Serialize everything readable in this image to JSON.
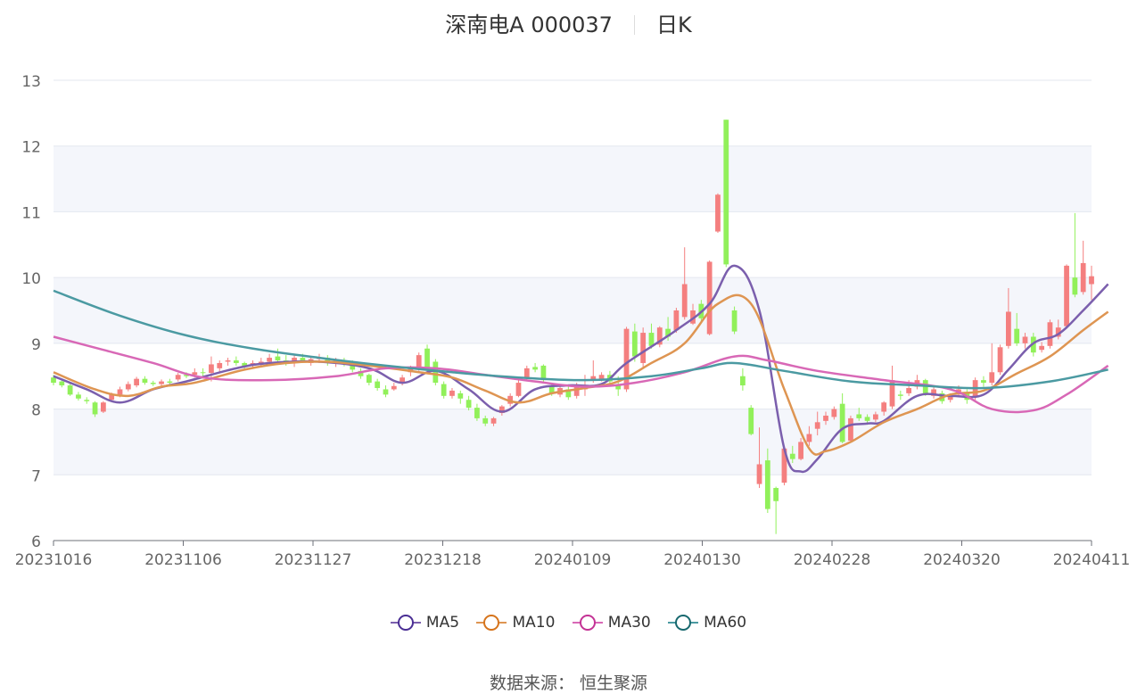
{
  "header": {
    "stock": "深南电A 000037",
    "period": "日K"
  },
  "source": {
    "label": "数据来源：",
    "name": "恒生聚源"
  },
  "colors": {
    "up": "#f47f7f",
    "down": "#91f05a",
    "MA5": "#7b5fad",
    "MA10": "#de9552",
    "MA30": "#d868b6",
    "MA60": "#4b9aa2",
    "MA5_ring": "#4a2e94",
    "MA10_ring": "#d6741c",
    "MA30_ring": "#c43395",
    "MA60_ring": "#17686e"
  },
  "chart_data": {
    "type": "candlestick",
    "x_ticks": [
      "20231016",
      "20231106",
      "20231127",
      "20231218",
      "20240109",
      "20240130",
      "20240228",
      "20240320",
      "20240411"
    ],
    "ylim": [
      6,
      13
    ],
    "yticks": [
      6,
      7,
      8,
      9,
      10,
      11,
      12,
      13
    ],
    "grid": "horizontal, alternating bands",
    "legend": [
      "MA5",
      "MA10",
      "MA30",
      "MA60"
    ],
    "legend_position": "bottom",
    "candles": [
      [
        8.48,
        8.4,
        8.52,
        8.36
      ],
      [
        8.42,
        8.36,
        8.46,
        8.33
      ],
      [
        8.36,
        8.22,
        8.39,
        8.2
      ],
      [
        8.22,
        8.16,
        8.26,
        8.13
      ],
      [
        8.14,
        8.12,
        8.18,
        8.08
      ],
      [
        8.1,
        7.92,
        8.12,
        7.88
      ],
      [
        7.96,
        8.1,
        8.12,
        7.94
      ],
      [
        8.14,
        8.22,
        8.25,
        8.12
      ],
      [
        8.22,
        8.3,
        8.34,
        8.18
      ],
      [
        8.3,
        8.38,
        8.42,
        8.27
      ],
      [
        8.36,
        8.46,
        8.49,
        8.33
      ],
      [
        8.46,
        8.4,
        8.5,
        8.37
      ],
      [
        8.4,
        8.38,
        8.43,
        8.35
      ],
      [
        8.38,
        8.42,
        8.45,
        8.35
      ],
      [
        8.42,
        8.4,
        8.46,
        8.37
      ],
      [
        8.45,
        8.52,
        8.55,
        8.42
      ],
      [
        8.52,
        8.5,
        8.56,
        8.47
      ],
      [
        8.52,
        8.56,
        8.62,
        8.48
      ],
      [
        8.56,
        8.55,
        8.62,
        8.5
      ],
      [
        8.55,
        8.68,
        8.8,
        8.42
      ],
      [
        8.62,
        8.7,
        8.74,
        8.56
      ],
      [
        8.72,
        8.74,
        8.78,
        8.66
      ],
      [
        8.74,
        8.7,
        8.8,
        8.66
      ],
      [
        8.7,
        8.66,
        8.72,
        8.6
      ],
      [
        8.66,
        8.7,
        8.74,
        8.62
      ],
      [
        8.68,
        8.72,
        8.78,
        8.64
      ],
      [
        8.72,
        8.78,
        8.84,
        8.7
      ],
      [
        8.8,
        8.74,
        8.92,
        8.7
      ],
      [
        8.74,
        8.72,
        8.82,
        8.66
      ],
      [
        8.7,
        8.78,
        8.82,
        8.64
      ],
      [
        8.78,
        8.74,
        8.84,
        8.7
      ],
      [
        8.7,
        8.76,
        8.8,
        8.66
      ],
      [
        8.76,
        8.78,
        8.84,
        8.7
      ],
      [
        8.78,
        8.7,
        8.82,
        8.66
      ],
      [
        8.7,
        8.74,
        8.78,
        8.64
      ],
      [
        8.74,
        8.7,
        8.78,
        8.65
      ],
      [
        8.7,
        8.6,
        8.74,
        8.56
      ],
      [
        8.58,
        8.5,
        8.62,
        8.46
      ],
      [
        8.52,
        8.4,
        8.54,
        8.36
      ],
      [
        8.42,
        8.32,
        8.46,
        8.28
      ],
      [
        8.3,
        8.22,
        8.36,
        8.18
      ],
      [
        8.3,
        8.35,
        8.4,
        8.28
      ],
      [
        8.4,
        8.48,
        8.52,
        8.36
      ],
      [
        8.56,
        8.64,
        8.66,
        8.5
      ],
      [
        8.62,
        8.82,
        8.86,
        8.58
      ],
      [
        8.92,
        8.62,
        8.98,
        8.58
      ],
      [
        8.72,
        8.4,
        8.76,
        8.36
      ],
      [
        8.38,
        8.2,
        8.42,
        8.16
      ],
      [
        8.2,
        8.28,
        8.32,
        8.16
      ],
      [
        8.24,
        8.16,
        8.28,
        8.08
      ],
      [
        8.14,
        8.02,
        8.2,
        7.98
      ],
      [
        8.02,
        7.86,
        8.08,
        7.82
      ],
      [
        7.86,
        7.78,
        7.9,
        7.74
      ],
      [
        7.78,
        7.86,
        7.88,
        7.74
      ],
      [
        7.94,
        8.04,
        8.06,
        7.9
      ],
      [
        8.08,
        8.2,
        8.24,
        8.04
      ],
      [
        8.2,
        8.4,
        8.44,
        8.18
      ],
      [
        8.46,
        8.62,
        8.66,
        8.44
      ],
      [
        8.64,
        8.6,
        8.7,
        8.56
      ],
      [
        8.66,
        8.44,
        8.68,
        8.4
      ],
      [
        8.36,
        8.24,
        8.4,
        8.2
      ],
      [
        8.22,
        8.32,
        8.36,
        8.18
      ],
      [
        8.3,
        8.18,
        8.34,
        8.14
      ],
      [
        8.2,
        8.36,
        8.4,
        8.16
      ],
      [
        8.3,
        8.34,
        8.52,
        8.2
      ],
      [
        8.44,
        8.5,
        8.74,
        8.4
      ],
      [
        8.46,
        8.52,
        8.56,
        8.42
      ],
      [
        8.52,
        8.42,
        8.58,
        8.38
      ],
      [
        8.36,
        8.3,
        8.5,
        8.2
      ],
      [
        8.3,
        9.22,
        9.25,
        8.26
      ],
      [
        9.18,
        8.8,
        9.3,
        8.72
      ],
      [
        8.7,
        9.16,
        9.24,
        8.62
      ],
      [
        9.16,
        8.96,
        9.3,
        8.92
      ],
      [
        8.98,
        9.24,
        9.26,
        8.94
      ],
      [
        9.22,
        9.1,
        9.4,
        9.04
      ],
      [
        9.2,
        9.5,
        9.54,
        9.16
      ],
      [
        9.4,
        9.9,
        10.46,
        9.36
      ],
      [
        9.3,
        9.5,
        9.6,
        9.28
      ],
      [
        9.6,
        9.38,
        9.66,
        9.34
      ],
      [
        9.14,
        10.24,
        10.26,
        9.12
      ],
      [
        10.7,
        11.26,
        11.28,
        10.68
      ],
      [
        12.4,
        10.2,
        12.4,
        10.16
      ],
      [
        9.5,
        9.18,
        9.56,
        9.14
      ],
      [
        8.5,
        8.36,
        8.62,
        8.28
      ],
      [
        8.02,
        7.62,
        8.06,
        7.6
      ],
      [
        6.86,
        7.16,
        7.72,
        6.8
      ],
      [
        7.22,
        6.48,
        7.4,
        6.42
      ],
      [
        6.8,
        6.6,
        6.82,
        6.1
      ],
      [
        6.88,
        7.4,
        7.44,
        6.84
      ],
      [
        7.32,
        7.24,
        7.44,
        7.18
      ],
      [
        7.24,
        7.5,
        7.56,
        7.22
      ],
      [
        7.5,
        7.62,
        7.74,
        7.44
      ],
      [
        7.7,
        7.8,
        7.96,
        7.6
      ],
      [
        7.82,
        7.9,
        7.96,
        7.76
      ],
      [
        7.88,
        8.0,
        8.04,
        7.84
      ],
      [
        8.08,
        7.5,
        8.24,
        7.48
      ],
      [
        7.52,
        7.86,
        7.9,
        7.5
      ],
      [
        7.92,
        7.86,
        8.02,
        7.82
      ],
      [
        7.88,
        7.82,
        7.92,
        7.76
      ],
      [
        7.84,
        7.92,
        7.96,
        7.8
      ],
      [
        7.96,
        8.1,
        8.12,
        7.9
      ],
      [
        8.04,
        8.44,
        8.66,
        8.0
      ],
      [
        8.22,
        8.2,
        8.28,
        8.14
      ],
      [
        8.24,
        8.32,
        8.44,
        8.2
      ],
      [
        8.34,
        8.44,
        8.52,
        8.3
      ],
      [
        8.44,
        8.24,
        8.46,
        8.2
      ],
      [
        8.2,
        8.3,
        8.34,
        8.16
      ],
      [
        8.24,
        8.12,
        8.28,
        8.08
      ],
      [
        8.14,
        8.2,
        8.24,
        8.1
      ],
      [
        8.22,
        8.3,
        8.36,
        8.18
      ],
      [
        8.26,
        8.14,
        8.3,
        8.08
      ],
      [
        8.18,
        8.44,
        8.48,
        8.14
      ],
      [
        8.44,
        8.4,
        8.5,
        8.34
      ],
      [
        8.4,
        8.56,
        9.0,
        8.36
      ],
      [
        8.56,
        8.94,
        8.98,
        8.52
      ],
      [
        8.96,
        9.48,
        9.84,
        8.92
      ],
      [
        9.22,
        9.0,
        9.46,
        8.96
      ],
      [
        9.0,
        9.1,
        9.16,
        8.92
      ],
      [
        9.1,
        8.86,
        9.16,
        8.8
      ],
      [
        8.9,
        8.96,
        9.02,
        8.86
      ],
      [
        8.96,
        9.32,
        9.36,
        8.92
      ],
      [
        9.1,
        9.24,
        9.36,
        9.06
      ],
      [
        9.26,
        10.18,
        10.2,
        9.22
      ],
      [
        10.0,
        9.74,
        10.98,
        9.7
      ],
      [
        9.78,
        10.22,
        10.56,
        9.74
      ],
      [
        9.9,
        10.02,
        10.18,
        9.66
      ]
    ],
    "series": [
      {
        "name": "MA5",
        "points": [
          [
            0,
            8.5
          ],
          [
            4,
            8.3
          ],
          [
            8,
            8.1
          ],
          [
            12,
            8.3
          ],
          [
            16,
            8.42
          ],
          [
            22,
            8.62
          ],
          [
            26,
            8.7
          ],
          [
            32,
            8.72
          ],
          [
            38,
            8.62
          ],
          [
            42,
            8.4
          ],
          [
            46,
            8.58
          ],
          [
            50,
            8.3
          ],
          [
            54,
            7.96
          ],
          [
            58,
            8.3
          ],
          [
            62,
            8.36
          ],
          [
            66,
            8.38
          ],
          [
            69,
            8.7
          ],
          [
            75,
            9.2
          ],
          [
            79,
            9.6
          ],
          [
            82,
            10.18
          ],
          [
            85,
            9.5
          ],
          [
            88,
            7.4
          ],
          [
            90,
            7.05
          ],
          [
            92,
            7.24
          ],
          [
            95,
            7.7
          ],
          [
            98,
            7.78
          ],
          [
            100,
            7.82
          ],
          [
            104,
            8.2
          ],
          [
            108,
            8.2
          ],
          [
            112,
            8.22
          ],
          [
            115,
            8.6
          ],
          [
            118,
            9.0
          ],
          [
            121,
            9.14
          ],
          [
            124,
            9.5
          ],
          [
            127,
            9.9
          ]
        ]
      },
      {
        "name": "MA10",
        "points": [
          [
            0,
            8.56
          ],
          [
            5,
            8.3
          ],
          [
            9,
            8.2
          ],
          [
            13,
            8.34
          ],
          [
            17,
            8.4
          ],
          [
            23,
            8.6
          ],
          [
            28,
            8.7
          ],
          [
            33,
            8.72
          ],
          [
            38,
            8.66
          ],
          [
            44,
            8.56
          ],
          [
            48,
            8.48
          ],
          [
            52,
            8.28
          ],
          [
            56,
            8.1
          ],
          [
            60,
            8.24
          ],
          [
            64,
            8.32
          ],
          [
            68,
            8.42
          ],
          [
            72,
            8.7
          ],
          [
            76,
            9.0
          ],
          [
            80,
            9.6
          ],
          [
            84,
            9.6
          ],
          [
            88,
            8.3
          ],
          [
            91,
            7.4
          ],
          [
            93,
            7.36
          ],
          [
            96,
            7.5
          ],
          [
            100,
            7.8
          ],
          [
            104,
            8.0
          ],
          [
            108,
            8.22
          ],
          [
            112,
            8.28
          ],
          [
            116,
            8.54
          ],
          [
            120,
            8.8
          ],
          [
            124,
            9.2
          ],
          [
            127,
            9.48
          ]
        ]
      },
      {
        "name": "MA30",
        "points": [
          [
            0,
            9.1
          ],
          [
            6,
            8.9
          ],
          [
            12,
            8.7
          ],
          [
            18,
            8.48
          ],
          [
            26,
            8.44
          ],
          [
            34,
            8.5
          ],
          [
            40,
            8.62
          ],
          [
            46,
            8.62
          ],
          [
            52,
            8.52
          ],
          [
            58,
            8.42
          ],
          [
            64,
            8.34
          ],
          [
            70,
            8.4
          ],
          [
            76,
            8.56
          ],
          [
            82,
            8.8
          ],
          [
            86,
            8.74
          ],
          [
            92,
            8.58
          ],
          [
            100,
            8.44
          ],
          [
            108,
            8.3
          ],
          [
            113,
            8.0
          ],
          [
            118,
            7.98
          ],
          [
            122,
            8.22
          ],
          [
            127,
            8.66
          ]
        ]
      },
      {
        "name": "MA60",
        "points": [
          [
            0,
            9.8
          ],
          [
            8,
            9.42
          ],
          [
            16,
            9.12
          ],
          [
            24,
            8.92
          ],
          [
            32,
            8.78
          ],
          [
            40,
            8.66
          ],
          [
            48,
            8.56
          ],
          [
            56,
            8.48
          ],
          [
            64,
            8.44
          ],
          [
            72,
            8.5
          ],
          [
            78,
            8.62
          ],
          [
            82,
            8.7
          ],
          [
            88,
            8.58
          ],
          [
            96,
            8.42
          ],
          [
            104,
            8.36
          ],
          [
            112,
            8.32
          ],
          [
            120,
            8.42
          ],
          [
            127,
            8.6
          ]
        ]
      }
    ]
  }
}
